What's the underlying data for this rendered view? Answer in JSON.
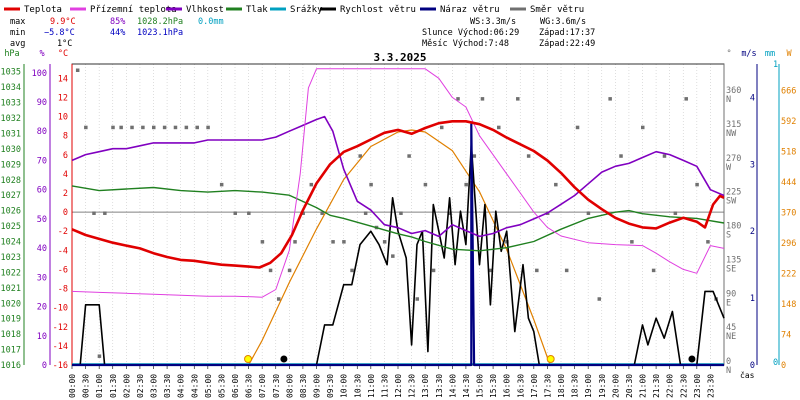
{
  "chart_data": {
    "type": "line",
    "title": "3.3.2025",
    "xlabel": "čas",
    "legend": [
      {
        "label": "Teplota",
        "color": "#e00000"
      },
      {
        "label": "Přízemní teplota",
        "color": "#e040e0"
      },
      {
        "label": "Vlhkost",
        "color": "#8000c0"
      },
      {
        "label": "Tlak",
        "color": "#208020"
      },
      {
        "label": "Srážky",
        "color": "#00a0c0"
      },
      {
        "label": "Rychlost větru",
        "color": "#000000"
      },
      {
        "label": "Náraz větru",
        "color": "#000080"
      },
      {
        "label": "Směr větru",
        "color": "#707070"
      }
    ],
    "stats": {
      "max_label": "max",
      "max_temp": "9.9°C",
      "max_hum": "85%",
      "max_press": "1028.2hPa",
      "max_rain": "0.0mm",
      "min_label": "min",
      "min_temp": "−5.8°C",
      "min_hum": "44%",
      "min_press": "1023.1hPa",
      "avg_label": "avg",
      "avg_temp": "1°C",
      "ws": "WS:3.3m/s",
      "wg": "WG:3.6m/s",
      "sunrise_label": "Slunce Východ:06:29",
      "sunset_label": "Západ:17:37",
      "moonrise_label": "Měsíc  Východ:7:48",
      "moonset_label": "Západ:22:49"
    },
    "axes": {
      "press_unit": "hPa",
      "hum_unit": "%",
      "temp_unit": "°C",
      "dir_unit": "°",
      "wind_unit": "m/s",
      "rain_unit": "mm",
      "solar_unit": "W",
      "press_ticks": [
        1016,
        1017,
        1018,
        1019,
        1020,
        1021,
        1022,
        1023,
        1024,
        1025,
        1026,
        1027,
        1028,
        1029,
        1030,
        1031,
        1032,
        1033,
        1034,
        1035
      ],
      "hum_ticks": [
        0,
        10,
        20,
        30,
        40,
        50,
        60,
        70,
        80,
        90,
        100
      ],
      "temp_ticks": [
        -16,
        -14,
        -12,
        -10,
        -8,
        -6,
        -4,
        -2,
        0,
        2,
        4,
        6,
        8,
        10,
        12,
        14
      ],
      "dir_ticks": [
        {
          "deg": "0",
          "name": "N"
        },
        {
          "deg": "45",
          "name": "NE"
        },
        {
          "deg": "90",
          "name": "E"
        },
        {
          "deg": "135",
          "name": "SE"
        },
        {
          "deg": "180",
          "name": "S"
        },
        {
          "deg": "225",
          "name": "SW"
        },
        {
          "deg": "270",
          "name": "W"
        },
        {
          "deg": "315",
          "name": "NW"
        },
        {
          "deg": "360",
          "name": "N"
        }
      ],
      "wind_ticks": [
        "4",
        "3",
        "2",
        "1",
        "0"
      ],
      "rain_ticks": [
        "1",
        "0"
      ],
      "solar_ticks": [
        "666",
        "592",
        "518",
        "444",
        "370",
        "296",
        "222",
        "148",
        "74",
        "0"
      ],
      "ylim_temp": [
        -16,
        15.5
      ],
      "ylim_press": [
        1016,
        1035.5
      ],
      "ylim_hum": [
        0,
        103
      ],
      "ylim_dir": [
        0,
        400
      ],
      "ylim_wind": [
        0,
        4.5
      ],
      "ylim_solar": [
        0,
        730
      ],
      "grid": "vertical dotted every 30 min, horizontal at temp 0",
      "time_labels": [
        "00:00",
        "00:30",
        "01:00",
        "01:30",
        "02:00",
        "02:30",
        "03:00",
        "03:30",
        "04:00",
        "04:30",
        "05:00",
        "05:30",
        "06:00",
        "06:30",
        "07:00",
        "07:30",
        "08:00",
        "08:30",
        "09:00",
        "09:30",
        "10:00",
        "10:30",
        "11:00",
        "11:30",
        "12:00",
        "12:30",
        "13:00",
        "13:30",
        "14:00",
        "14:30",
        "15:00",
        "15:30",
        "16:00",
        "16:30",
        "17:00",
        "17:30",
        "18:00",
        "18:30",
        "19:00",
        "19:30",
        "20:00",
        "20:30",
        "21:00",
        "21:30",
        "22:00",
        "22:30",
        "23:00",
        "23:30"
      ]
    },
    "series": {
      "temperature": [
        [
          0,
          -1.8
        ],
        [
          0.5,
          -2.4
        ],
        [
          1,
          -2.8
        ],
        [
          1.5,
          -3.2
        ],
        [
          2,
          -3.5
        ],
        [
          2.5,
          -3.8
        ],
        [
          3,
          -4.3
        ],
        [
          3.5,
          -4.7
        ],
        [
          4,
          -5.0
        ],
        [
          4.5,
          -5.1
        ],
        [
          5,
          -5.3
        ],
        [
          5.5,
          -5.5
        ],
        [
          6,
          -5.6
        ],
        [
          6.5,
          -5.7
        ],
        [
          6.9,
          -5.8
        ],
        [
          7.3,
          -5.3
        ],
        [
          7.7,
          -4.3
        ],
        [
          8.1,
          -2.4
        ],
        [
          8.5,
          0.2
        ],
        [
          9,
          3.0
        ],
        [
          9.5,
          5.0
        ],
        [
          10,
          6.3
        ],
        [
          10.5,
          6.9
        ],
        [
          11,
          7.6
        ],
        [
          11.5,
          8.3
        ],
        [
          12,
          8.6
        ],
        [
          12.5,
          8.2
        ],
        [
          13,
          8.8
        ],
        [
          13.5,
          9.3
        ],
        [
          14,
          9.5
        ],
        [
          14.5,
          9.5
        ],
        [
          15,
          9.2
        ],
        [
          15.5,
          8.6
        ],
        [
          16,
          7.8
        ],
        [
          16.5,
          7.1
        ],
        [
          17,
          6.4
        ],
        [
          17.5,
          5.4
        ],
        [
          18,
          4.1
        ],
        [
          18.5,
          2.6
        ],
        [
          19,
          1.3
        ],
        [
          19.5,
          0.3
        ],
        [
          20,
          -0.6
        ],
        [
          20.5,
          -1.2
        ],
        [
          21,
          -1.6
        ],
        [
          21.5,
          -1.7
        ],
        [
          22,
          -1.1
        ],
        [
          22.5,
          -0.6
        ],
        [
          23,
          -1.0
        ],
        [
          23.3,
          -1.6
        ],
        [
          23.6,
          0.8
        ],
        [
          23.85,
          1.7
        ],
        [
          24,
          1.5
        ]
      ],
      "ground_temperature": [
        [
          0,
          -8.3
        ],
        [
          1,
          -8.4
        ],
        [
          2,
          -8.5
        ],
        [
          3,
          -8.6
        ],
        [
          4,
          -8.7
        ],
        [
          5,
          -8.8
        ],
        [
          6,
          -8.8
        ],
        [
          7,
          -8.9
        ],
        [
          7.5,
          -8.1
        ],
        [
          8,
          -4.0
        ],
        [
          8.4,
          4.0
        ],
        [
          8.7,
          13.0
        ],
        [
          9,
          15.0
        ],
        [
          13,
          15.0
        ],
        [
          13.5,
          14.0
        ],
        [
          14,
          12.0
        ],
        [
          14.5,
          11.0
        ],
        [
          15,
          8.0
        ],
        [
          15.5,
          6.0
        ],
        [
          16,
          4.0
        ],
        [
          16.5,
          2.0
        ],
        [
          17,
          0.0
        ],
        [
          17.5,
          -1.6
        ],
        [
          18,
          -2.5
        ],
        [
          19,
          -3.2
        ],
        [
          20,
          -3.4
        ],
        [
          21,
          -3.5
        ],
        [
          21.5,
          -4.3
        ],
        [
          22,
          -5.2
        ],
        [
          22.5,
          -6.0
        ],
        [
          23,
          -6.4
        ],
        [
          23.5,
          -3.5
        ],
        [
          24,
          -3.8
        ]
      ],
      "humidity": [
        [
          0,
          70
        ],
        [
          0.5,
          72
        ],
        [
          1,
          73
        ],
        [
          1.5,
          74
        ],
        [
          2,
          74
        ],
        [
          2.5,
          75
        ],
        [
          3,
          76
        ],
        [
          3.5,
          76
        ],
        [
          4,
          76
        ],
        [
          4.5,
          76
        ],
        [
          5,
          77
        ],
        [
          5.5,
          77
        ],
        [
          6,
          77
        ],
        [
          6.5,
          77
        ],
        [
          7,
          77
        ],
        [
          7.5,
          78
        ],
        [
          8,
          80
        ],
        [
          8.5,
          82
        ],
        [
          9,
          84
        ],
        [
          9.3,
          85
        ],
        [
          9.6,
          80
        ],
        [
          10,
          67
        ],
        [
          10.5,
          56
        ],
        [
          11,
          53
        ],
        [
          11.5,
          48
        ],
        [
          12,
          47
        ],
        [
          12.5,
          45
        ],
        [
          13,
          46
        ],
        [
          13.5,
          44
        ],
        [
          14,
          48
        ],
        [
          14.5,
          46
        ],
        [
          15,
          44
        ],
        [
          15.5,
          45
        ],
        [
          16,
          47
        ],
        [
          16.5,
          48
        ],
        [
          17,
          50
        ],
        [
          17.5,
          52
        ],
        [
          18,
          55
        ],
        [
          18.5,
          58
        ],
        [
          19,
          62
        ],
        [
          19.5,
          66
        ],
        [
          20,
          68
        ],
        [
          20.5,
          69
        ],
        [
          21,
          71
        ],
        [
          21.5,
          73
        ],
        [
          22,
          72
        ],
        [
          22.5,
          70
        ],
        [
          23,
          68
        ],
        [
          23.5,
          60
        ],
        [
          24,
          58
        ]
      ],
      "pressure": [
        [
          0,
          1027.6
        ],
        [
          1,
          1027.3
        ],
        [
          2,
          1027.4
        ],
        [
          3,
          1027.5
        ],
        [
          4,
          1027.3
        ],
        [
          5,
          1027.2
        ],
        [
          6,
          1027.3
        ],
        [
          7,
          1027.2
        ],
        [
          8,
          1027.0
        ],
        [
          9,
          1026.2
        ],
        [
          9.5,
          1025.7
        ],
        [
          10,
          1025.5
        ],
        [
          11,
          1025.0
        ],
        [
          12,
          1024.5
        ],
        [
          12.5,
          1024.3
        ],
        [
          13,
          1024.0
        ],
        [
          14,
          1023.5
        ],
        [
          15,
          1023.4
        ],
        [
          16,
          1023.6
        ],
        [
          17,
          1024.0
        ],
        [
          18,
          1024.8
        ],
        [
          19,
          1025.5
        ],
        [
          20,
          1025.9
        ],
        [
          20.5,
          1026.0
        ],
        [
          21,
          1025.8
        ],
        [
          22,
          1025.6
        ],
        [
          23,
          1025.5
        ],
        [
          24,
          1025.2
        ]
      ],
      "wind_speed": [
        [
          0,
          0
        ],
        [
          0.3,
          0
        ],
        [
          0.5,
          0.9
        ],
        [
          1,
          0.9
        ],
        [
          1.2,
          0
        ],
        [
          9,
          0
        ],
        [
          9.3,
          0.6
        ],
        [
          9.6,
          0.6
        ],
        [
          10,
          1.2
        ],
        [
          10.3,
          1.2
        ],
        [
          10.6,
          1.8
        ],
        [
          11,
          2.0
        ],
        [
          11.3,
          1.8
        ],
        [
          11.6,
          1.5
        ],
        [
          11.8,
          2.5
        ],
        [
          12,
          2.0
        ],
        [
          12.3,
          1.6
        ],
        [
          12.5,
          0.3
        ],
        [
          12.7,
          1.8
        ],
        [
          12.9,
          2.0
        ],
        [
          13.1,
          0.2
        ],
        [
          13.3,
          2.4
        ],
        [
          13.5,
          2.0
        ],
        [
          13.7,
          1.6
        ],
        [
          13.9,
          2.5
        ],
        [
          14.1,
          1.5
        ],
        [
          14.3,
          2.3
        ],
        [
          14.5,
          1.8
        ],
        [
          14.7,
          3.3
        ],
        [
          15,
          1.5
        ],
        [
          15.2,
          2.4
        ],
        [
          15.4,
          0.9
        ],
        [
          15.6,
          2.3
        ],
        [
          15.8,
          1.7
        ],
        [
          16,
          2.0
        ],
        [
          16.3,
          0.5
        ],
        [
          16.6,
          1.5
        ],
        [
          16.8,
          0.7
        ],
        [
          17,
          0.5
        ],
        [
          17.2,
          0
        ],
        [
          20.7,
          0
        ],
        [
          21,
          0.6
        ],
        [
          21.2,
          0.3
        ],
        [
          21.5,
          0.7
        ],
        [
          21.8,
          0.4
        ],
        [
          22.1,
          0.8
        ],
        [
          22.4,
          0
        ],
        [
          23,
          0
        ],
        [
          23.3,
          1.1
        ],
        [
          23.6,
          1.1
        ],
        [
          24,
          0.7
        ]
      ],
      "wind_gust": [
        [
          0,
          0
        ],
        [
          14.7,
          0
        ],
        [
          14.7,
          3.6
        ],
        [
          14.8,
          0
        ],
        [
          24,
          0
        ]
      ],
      "rain": [
        [
          0,
          0
        ],
        [
          24,
          0
        ]
      ],
      "solar": [
        [
          6.5,
          0
        ],
        [
          7,
          60
        ],
        [
          8,
          200
        ],
        [
          9,
          330
        ],
        [
          10,
          450
        ],
        [
          11,
          530
        ],
        [
          12,
          565
        ],
        [
          12.5,
          570
        ],
        [
          13,
          565
        ],
        [
          14,
          520
        ],
        [
          15,
          420
        ],
        [
          16,
          280
        ],
        [
          17,
          110
        ],
        [
          17.6,
          0
        ]
      ],
      "wind_direction": [
        [
          0.2,
          1.0
        ],
        [
          0.5,
          0.8
        ],
        [
          0.8,
          0.5
        ],
        [
          1.0,
          0.0
        ],
        [
          1.2,
          0.5
        ],
        [
          1.5,
          0.8
        ],
        [
          1.8,
          0.8
        ],
        [
          2.2,
          0.8
        ],
        [
          2.6,
          0.8
        ],
        [
          3.0,
          0.8
        ],
        [
          3.4,
          0.8
        ],
        [
          3.8,
          0.8
        ],
        [
          4.2,
          0.8
        ],
        [
          4.6,
          0.8
        ],
        [
          5.0,
          0.8
        ],
        [
          5.5,
          0.6
        ],
        [
          6.0,
          0.5
        ],
        [
          6.5,
          0.5
        ],
        [
          7.0,
          0.4
        ],
        [
          7.3,
          0.3
        ],
        [
          7.6,
          0.2
        ],
        [
          8.0,
          0.3
        ],
        [
          8.2,
          0.4
        ],
        [
          8.5,
          0.5
        ],
        [
          8.8,
          0.6
        ],
        [
          9.2,
          0.5
        ],
        [
          9.6,
          0.4
        ],
        [
          10.0,
          0.4
        ],
        [
          10.3,
          0.3
        ],
        [
          10.6,
          0.7
        ],
        [
          10.8,
          0.5
        ],
        [
          11.0,
          0.6
        ],
        [
          11.2,
          0.45
        ],
        [
          11.5,
          0.4
        ],
        [
          11.8,
          0.35
        ],
        [
          12.1,
          0.5
        ],
        [
          12.4,
          0.7
        ],
        [
          12.7,
          0.2
        ],
        [
          13.0,
          0.6
        ],
        [
          13.3,
          0.3
        ],
        [
          13.6,
          0.8
        ],
        [
          13.9,
          0.5
        ],
        [
          14.2,
          0.9
        ],
        [
          14.5,
          0.6
        ],
        [
          14.8,
          0.7
        ],
        [
          15.1,
          0.9
        ],
        [
          15.4,
          0.3
        ],
        [
          15.7,
          0.8
        ],
        [
          16.0,
          0.4
        ],
        [
          16.4,
          0.9
        ],
        [
          16.8,
          0.7
        ],
        [
          17.1,
          0.3
        ],
        [
          17.5,
          0.5
        ],
        [
          17.8,
          0.6
        ],
        [
          18.2,
          0.3
        ],
        [
          18.6,
          0.8
        ],
        [
          19.0,
          0.5
        ],
        [
          19.4,
          0.2
        ],
        [
          19.8,
          0.9
        ],
        [
          20.2,
          0.7
        ],
        [
          20.6,
          0.4
        ],
        [
          21.0,
          0.8
        ],
        [
          21.4,
          0.3
        ],
        [
          21.8,
          0.7
        ],
        [
          22.2,
          0.5
        ],
        [
          22.6,
          0.9
        ],
        [
          23.0,
          0.6
        ],
        [
          23.4,
          0.4
        ],
        [
          23.7,
          0.2
        ]
      ]
    },
    "markers": {
      "sunrise": 6.48,
      "sunset": 17.62,
      "moonrise": 7.8,
      "moonset": 22.82
    }
  }
}
